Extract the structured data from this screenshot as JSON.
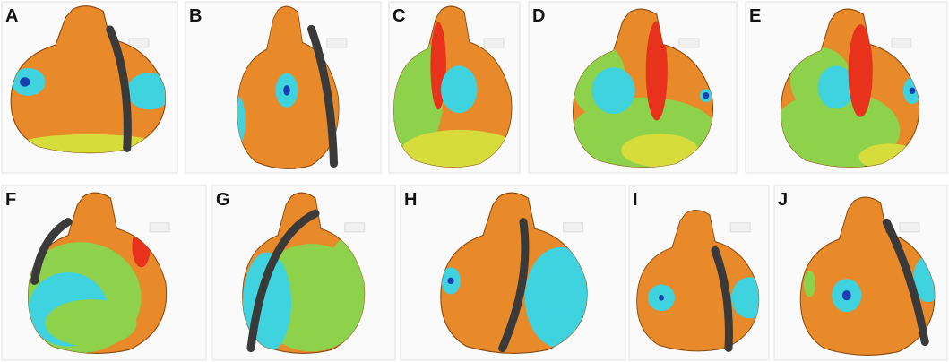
{
  "panels": [
    {
      "label": "A"
    },
    {
      "label": "B"
    },
    {
      "label": "C"
    },
    {
      "label": "D"
    },
    {
      "label": "E"
    },
    {
      "label": "F"
    },
    {
      "label": "G"
    },
    {
      "label": "H"
    },
    {
      "label": "I"
    },
    {
      "label": "J"
    }
  ]
}
